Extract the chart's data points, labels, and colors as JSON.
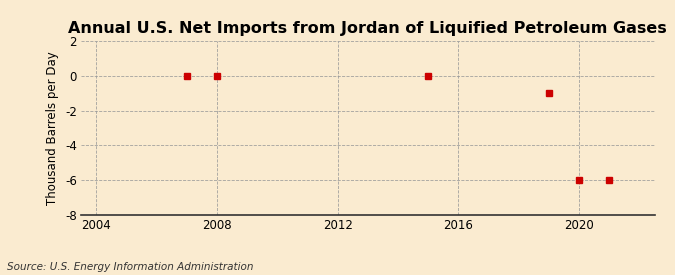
{
  "title": "Annual U.S. Net Imports from Jordan of Liquified Petroleum Gases",
  "ylabel": "Thousand Barrels per Day",
  "source": "Source: U.S. Energy Information Administration",
  "x_data": [
    2007,
    2008,
    2015,
    2019,
    2020,
    2021
  ],
  "y_data": [
    0,
    0,
    0,
    -1.0,
    -6.0,
    -6.0
  ],
  "marker_color": "#cc0000",
  "marker_size": 4,
  "xlim": [
    2003.5,
    2022.5
  ],
  "ylim": [
    -8,
    2
  ],
  "yticks": [
    -8,
    -6,
    -4,
    -2,
    0,
    2
  ],
  "xticks": [
    2004,
    2008,
    2012,
    2016,
    2020
  ],
  "bg_color": "#faebd0",
  "plot_bg_color": "#faebd0",
  "grid_color": "#999999",
  "title_fontsize": 11.5,
  "label_fontsize": 8.5,
  "tick_fontsize": 8.5,
  "source_fontsize": 7.5
}
